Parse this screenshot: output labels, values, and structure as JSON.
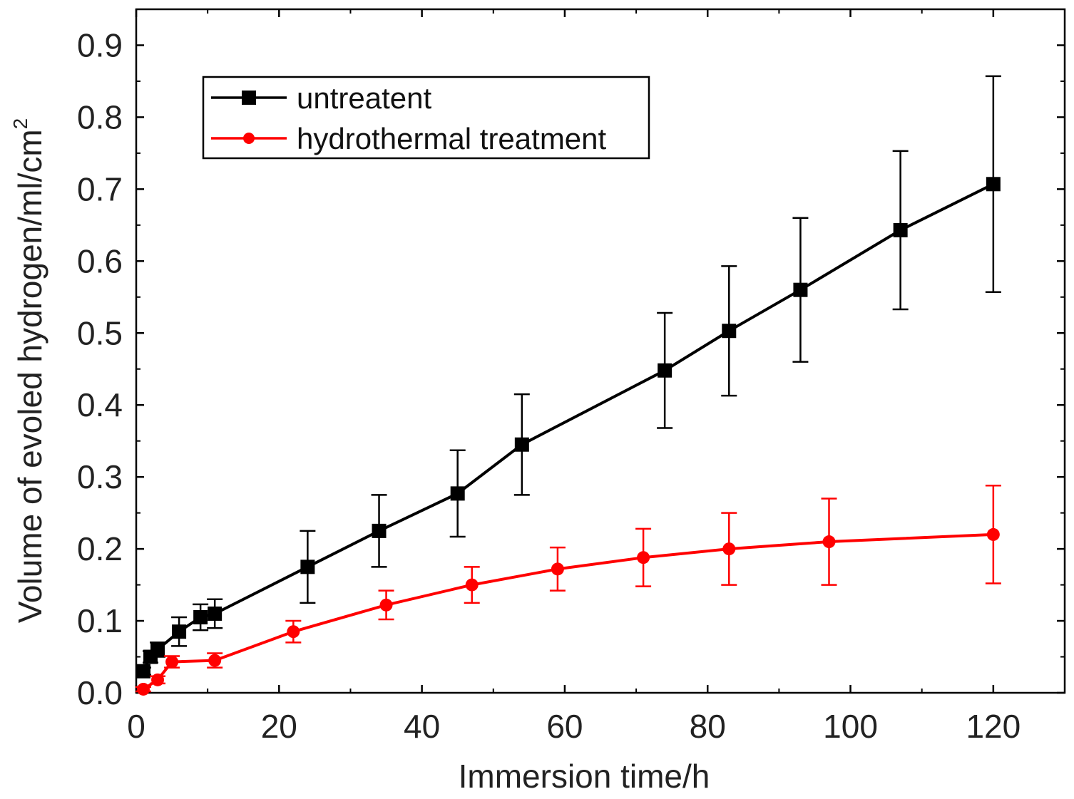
{
  "chart_data": {
    "type": "line",
    "xlabel": "Immersion time/h",
    "ylabel": "Volume of evoled hydrogen/ml/cm",
    "ylabel_superscript": "2",
    "xlim": [
      0,
      130
    ],
    "ylim": [
      0,
      0.95
    ],
    "xticks": [
      0,
      20,
      40,
      60,
      80,
      100,
      120
    ],
    "xtick_labels": [
      "0",
      "20",
      "40",
      "60",
      "80",
      "100",
      "120"
    ],
    "yticks": [
      0.0,
      0.1,
      0.2,
      0.3,
      0.4,
      0.5,
      0.6,
      0.7,
      0.8,
      0.9
    ],
    "ytick_labels": [
      "0.0",
      "0.1",
      "0.2",
      "0.3",
      "0.4",
      "0.5",
      "0.6",
      "0.7",
      "0.8",
      "0.9"
    ],
    "x_minor_step": 10,
    "y_minor_step": 0.05,
    "legend_position": "top-left",
    "series": [
      {
        "name": "untreatent",
        "color": "#000000",
        "marker": "square",
        "x": [
          1,
          2,
          3,
          6,
          9,
          11,
          24,
          34,
          45,
          54,
          74,
          83,
          93,
          107,
          120
        ],
        "y": [
          0.03,
          0.05,
          0.06,
          0.085,
          0.105,
          0.11,
          0.175,
          0.225,
          0.277,
          0.345,
          0.448,
          0.503,
          0.56,
          0.643,
          0.707
        ],
        "err": [
          0.005,
          0.008,
          0.01,
          0.02,
          0.018,
          0.02,
          0.05,
          0.05,
          0.06,
          0.07,
          0.08,
          0.09,
          0.1,
          0.11,
          0.15
        ]
      },
      {
        "name": "hydrothermal treatment",
        "color": "#ff0000",
        "marker": "circle",
        "x": [
          1,
          3,
          5,
          11,
          22,
          35,
          47,
          59,
          71,
          83,
          97,
          120
        ],
        "y": [
          0.005,
          0.018,
          0.043,
          0.045,
          0.085,
          0.122,
          0.15,
          0.172,
          0.188,
          0.2,
          0.21,
          0.22
        ],
        "err": [
          0.003,
          0.005,
          0.008,
          0.01,
          0.015,
          0.02,
          0.025,
          0.03,
          0.04,
          0.05,
          0.06,
          0.068
        ]
      }
    ]
  }
}
